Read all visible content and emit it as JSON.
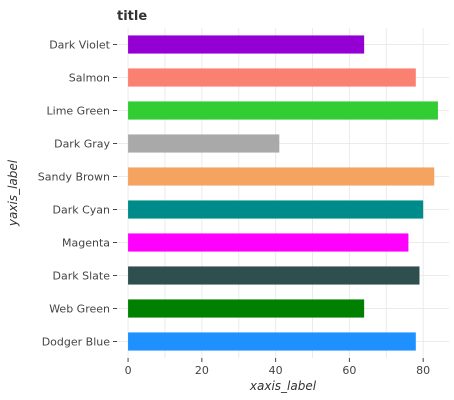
{
  "chart_data": {
    "type": "bar",
    "orientation": "horizontal",
    "title": "title",
    "xlabel": "xaxis_label",
    "ylabel": "yaxis_label",
    "xlim": [
      -3,
      87
    ],
    "xticks": [
      0,
      20,
      40,
      60,
      80
    ],
    "grid": true,
    "categories": [
      "Dodger Blue",
      "Web Green",
      "Dark Slate",
      "Magenta",
      "Dark Cyan",
      "Sandy Brown",
      "Dark Gray",
      "Lime Green",
      "Salmon",
      "Dark Violet"
    ],
    "values": [
      78,
      64,
      79,
      76,
      80,
      83,
      41,
      84,
      78,
      64
    ],
    "colors": [
      "#1e90ff",
      "#008000",
      "#2f4f4f",
      "#ff00ff",
      "#008b8b",
      "#f4a460",
      "#a9a9a9",
      "#32cd32",
      "#fa8072",
      "#9400d3"
    ]
  }
}
